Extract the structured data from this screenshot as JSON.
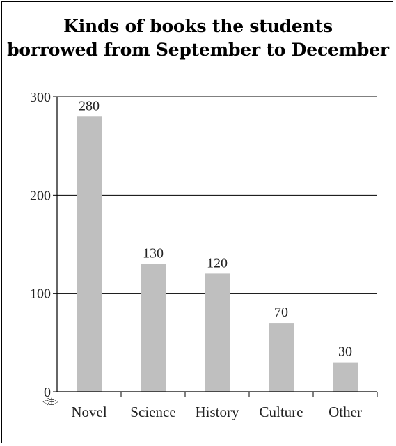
{
  "chart_data": {
    "type": "bar",
    "title_lines": [
      "Kinds of  books the students",
      "borrowed  from September to December"
    ],
    "categories": [
      "Novel",
      "Science",
      "History",
      "Culture",
      "Other"
    ],
    "values": [
      280,
      130,
      120,
      70,
      30
    ],
    "value_labels": [
      "280",
      "130",
      "120",
      "70",
      "30"
    ],
    "y_ticks": [
      0,
      100,
      200,
      300
    ],
    "y_tick_labels": [
      "0",
      "100",
      "200",
      "300"
    ],
    "ylim": [
      0,
      300
    ],
    "grid": true,
    "xlabel": "",
    "ylabel": "",
    "note_mark": "<注>",
    "colors": {
      "bar": "#bfbfbf",
      "axis": "#000000",
      "text": "#222222"
    }
  }
}
